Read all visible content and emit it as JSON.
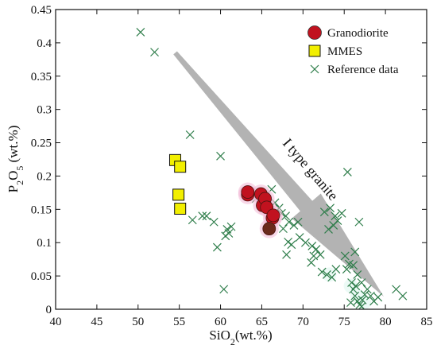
{
  "colors": {
    "granodiorite_fill": "#c1121f",
    "granodiorite_dark": "#6b2a1c",
    "granodiorite_halo": "#f2b8d6",
    "mmes_fill": "#f2ef00",
    "reference_stroke": "#2e7d4a",
    "arrow_fill": "#b3b3b3"
  },
  "chart_data": {
    "type": "scatter",
    "xlabel": "SiO2(wt.%)",
    "ylabel": "P2O5 (wt.%)",
    "xlim": [
      40,
      85
    ],
    "ylim": [
      0,
      0.45
    ],
    "xticks": [
      "40",
      "45",
      "50",
      "55",
      "60",
      "65",
      "70",
      "75",
      "80",
      "85"
    ],
    "yticks": [
      "0",
      "0.05",
      "0.1",
      "0.15",
      "0.2",
      "0.25",
      "0.3",
      "0.35",
      "0.4",
      "0.45"
    ],
    "legend_position": "top-right",
    "annotation": {
      "text": "I type granite",
      "from": [
        54.5,
        0.385
      ],
      "to": [
        79.8,
        0.019
      ]
    },
    "series": [
      {
        "name": "Granodiorite",
        "marker": "circle",
        "points": [
          [
            63.3,
            0.172
          ],
          [
            63.3,
            0.176
          ],
          [
            64.9,
            0.173
          ],
          [
            65.1,
            0.156
          ],
          [
            65.4,
            0.166
          ],
          [
            65.6,
            0.153
          ],
          [
            66.3,
            0.137
          ],
          [
            66.4,
            0.141
          ],
          [
            65.9,
            0.121
          ]
        ]
      },
      {
        "name": "MMES",
        "marker": "square",
        "points": [
          [
            54.5,
            0.224
          ],
          [
            55.1,
            0.214
          ],
          [
            54.9,
            0.172
          ],
          [
            55.1,
            0.151
          ]
        ]
      },
      {
        "name": "Reference data",
        "marker": "x",
        "points": [
          [
            50.3,
            0.416
          ],
          [
            52.0,
            0.386
          ],
          [
            56.3,
            0.262
          ],
          [
            60.0,
            0.23
          ],
          [
            56.6,
            0.134
          ],
          [
            57.8,
            0.14
          ],
          [
            58.3,
            0.14
          ],
          [
            59.2,
            0.131
          ],
          [
            60.8,
            0.12
          ],
          [
            61.3,
            0.124
          ],
          [
            61.0,
            0.114
          ],
          [
            60.6,
            0.11
          ],
          [
            59.6,
            0.093
          ],
          [
            60.4,
            0.03
          ],
          [
            64.3,
            0.166
          ],
          [
            66.2,
            0.18
          ],
          [
            66.6,
            0.16
          ],
          [
            67.1,
            0.152
          ],
          [
            67.4,
            0.144
          ],
          [
            67.9,
            0.14
          ],
          [
            68.3,
            0.131
          ],
          [
            67.6,
            0.121
          ],
          [
            68.9,
            0.126
          ],
          [
            69.4,
            0.131
          ],
          [
            68.2,
            0.101
          ],
          [
            68.6,
            0.097
          ],
          [
            68.0,
            0.082
          ],
          [
            69.6,
            0.108
          ],
          [
            70.3,
            0.1
          ],
          [
            71.1,
            0.095
          ],
          [
            71.6,
            0.09
          ],
          [
            71.3,
            0.08
          ],
          [
            72.1,
            0.082
          ],
          [
            71.0,
            0.07
          ],
          [
            72.3,
            0.056
          ],
          [
            72.9,
            0.052
          ],
          [
            73.5,
            0.048
          ],
          [
            74.0,
            0.06
          ],
          [
            73.1,
            0.12
          ],
          [
            73.7,
            0.126
          ],
          [
            74.2,
            0.133
          ],
          [
            72.6,
            0.146
          ],
          [
            73.3,
            0.152
          ],
          [
            73.9,
            0.14
          ],
          [
            74.7,
            0.144
          ],
          [
            75.4,
            0.206
          ],
          [
            76.3,
            0.086
          ],
          [
            76.8,
            0.131
          ],
          [
            75.1,
            0.08
          ],
          [
            75.6,
            0.068
          ],
          [
            75.3,
            0.06
          ],
          [
            76.1,
            0.066
          ],
          [
            76.6,
            0.052
          ],
          [
            75.9,
            0.04
          ],
          [
            76.1,
            0.03
          ],
          [
            76.3,
            0.02
          ],
          [
            76.6,
            0.012
          ],
          [
            76.9,
            0.007
          ],
          [
            77.2,
            0.014
          ],
          [
            77.5,
            0.022
          ],
          [
            77.8,
            0.03
          ],
          [
            77.1,
            0.04
          ],
          [
            76.4,
            0.035
          ],
          [
            78.2,
            0.02
          ],
          [
            78.6,
            0.012
          ],
          [
            79.1,
            0.018
          ],
          [
            81.3,
            0.03
          ],
          [
            82.1,
            0.02
          ],
          [
            77.1,
            0.004
          ],
          [
            75.8,
            0.01
          ]
        ]
      }
    ]
  }
}
